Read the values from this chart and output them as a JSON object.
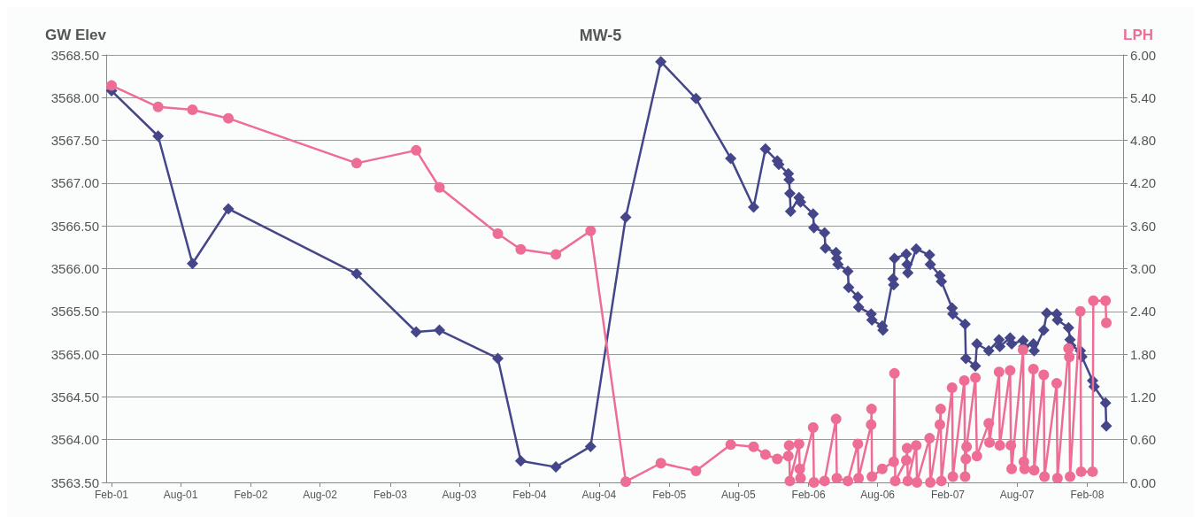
{
  "chart_data": {
    "type": "line",
    "title": "MW-5",
    "ylabel": "GW Elev",
    "y2label": "LPH",
    "xlim": [
      "2001-01-18",
      "2008-05-05"
    ],
    "xticks": [
      {
        "value": "2001-02-01",
        "label": "Feb-01"
      },
      {
        "value": "2001-08-01",
        "label": "Aug-01"
      },
      {
        "value": "2002-02-01",
        "label": "Feb-02"
      },
      {
        "value": "2002-08-01",
        "label": "Aug-02"
      },
      {
        "value": "2003-02-01",
        "label": "Feb-03"
      },
      {
        "value": "2003-08-01",
        "label": "Aug-03"
      },
      {
        "value": "2004-02-01",
        "label": "Feb-04"
      },
      {
        "value": "2004-08-01",
        "label": "Aug-04"
      },
      {
        "value": "2005-02-01",
        "label": "Feb-05"
      },
      {
        "value": "2005-08-01",
        "label": "Aug-05"
      },
      {
        "value": "2006-02-01",
        "label": "Feb-06"
      },
      {
        "value": "2006-08-01",
        "label": "Aug-06"
      },
      {
        "value": "2007-02-01",
        "label": "Feb-07"
      },
      {
        "value": "2007-08-01",
        "label": "Aug-07"
      },
      {
        "value": "2008-02-01",
        "label": "Feb-08"
      }
    ],
    "ylim": [
      3563.5,
      3568.5
    ],
    "yticks": [
      {
        "value": 3563.5,
        "label": "3563.50"
      },
      {
        "value": 3564,
        "label": "3564.00"
      },
      {
        "value": 3564.5,
        "label": "3564.50"
      },
      {
        "value": 3565,
        "label": "3565.00"
      },
      {
        "value": 3565.5,
        "label": "3565.50"
      },
      {
        "value": 3566,
        "label": "3566.00"
      },
      {
        "value": 3566.5,
        "label": "3566.50"
      },
      {
        "value": 3567,
        "label": "3567.00"
      },
      {
        "value": 3567.5,
        "label": "3567.50"
      },
      {
        "value": 3568,
        "label": "3568.00"
      },
      {
        "value": 3568.5,
        "label": "3568.50"
      }
    ],
    "y2lim": [
      0,
      6
    ],
    "y2ticks": [
      {
        "value": 0,
        "label": "0.00"
      },
      {
        "value": 0.6,
        "label": "0.60"
      },
      {
        "value": 1.2,
        "label": "1.20"
      },
      {
        "value": 1.8,
        "label": "1.80"
      },
      {
        "value": 2.4,
        "label": "2.40"
      },
      {
        "value": 3,
        "label": "3.00"
      },
      {
        "value": 3.6,
        "label": "3.60"
      },
      {
        "value": 4.2,
        "label": "4.20"
      },
      {
        "value": 4.8,
        "label": "4.80"
      },
      {
        "value": 5.4,
        "label": "5.40"
      },
      {
        "value": 6,
        "label": "6.00"
      }
    ],
    "grid": "y",
    "line_style": "solid",
    "series": [
      {
        "color": "#45458a",
        "marker": "diamond",
        "x": [
          "2001-02-01",
          "2001-06-03",
          "2001-09-01",
          "2001-12-04",
          "2002-11-05",
          "2003-04-10",
          "2003-06-10",
          "2003-11-10",
          "2004-01-09",
          "2004-04-10",
          "2004-07-10",
          "2004-10-10",
          "2005-01-10",
          "2005-04-12",
          "2005-07-12",
          "2005-09-10",
          "2005-10-11",
          "2005-11-11",
          "2005-11-15",
          "2005-12-10",
          "2005-12-12",
          "2005-12-14",
          "2005-12-16",
          "2006-01-07",
          "2006-01-11",
          "2006-02-13",
          "2006-02-15",
          "2006-03-15",
          "2006-03-17",
          "2006-04-14",
          "2006-04-16",
          "2006-04-19",
          "2006-05-15",
          "2006-05-17",
          "2006-06-10",
          "2006-06-12",
          "2006-07-15",
          "2006-07-17",
          "2006-08-13",
          "2006-08-15",
          "2006-09-10",
          "2006-09-12",
          "2006-09-14",
          "2006-10-15",
          "2006-10-17",
          "2006-10-19",
          "2006-11-10",
          "2006-12-15",
          "2006-12-17",
          "2007-01-11",
          "2007-01-15",
          "2007-02-12",
          "2007-02-14",
          "2007-03-18",
          "2007-03-20",
          "2007-04-14",
          "2007-04-18",
          "2007-05-19",
          "2007-06-15",
          "2007-06-17",
          "2007-07-14",
          "2007-07-18",
          "2007-08-17",
          "2007-08-19",
          "2007-09-13",
          "2007-09-15",
          "2007-10-10",
          "2007-10-18",
          "2007-11-13",
          "2007-11-15",
          "2007-12-14",
          "2007-12-18",
          "2007-12-20",
          "2008-01-14",
          "2008-01-18",
          "2008-02-15",
          "2008-02-19",
          "2008-03-20",
          "2008-03-22"
        ],
        "values": [
          3568.08,
          3567.55,
          3566.06,
          3566.7,
          3565.94,
          3565.26,
          3565.28,
          3564.95,
          3563.75,
          3563.68,
          3563.92,
          3566.6,
          3568.42,
          3567.99,
          3567.29,
          3566.72,
          3567.4,
          3567.26,
          3567.22,
          3567.11,
          3567.04,
          3566.88,
          3566.67,
          3566.83,
          3566.78,
          3566.64,
          3566.48,
          3566.42,
          3566.24,
          3566.19,
          3566.12,
          3566.05,
          3565.97,
          3565.78,
          3565.67,
          3565.55,
          3565.47,
          3565.4,
          3565.33,
          3565.28,
          3565.88,
          3565.81,
          3566.12,
          3566.17,
          3566.05,
          3565.95,
          3566.23,
          3566.16,
          3566.05,
          3565.92,
          3565.85,
          3565.54,
          3565.47,
          3565.35,
          3564.95,
          3564.86,
          3565.12,
          3565.04,
          3565.17,
          3565.09,
          3565.19,
          3565.12,
          3565.16,
          3565.09,
          3565.12,
          3565.04,
          3565.28,
          3565.48,
          3565.47,
          3565.4,
          3565.31,
          3565.17,
          3565.1,
          3565.04,
          3564.97,
          3564.69,
          3564.62,
          3564.43,
          3564.16
        ]
      },
      {
        "color": "#ee6d94",
        "marker": "circle",
        "axis": "y2",
        "x": [
          "2001-02-01",
          "2001-06-03",
          "2001-09-01",
          "2001-12-04",
          "2002-11-05",
          "2003-04-10",
          "2003-06-10",
          "2003-11-10",
          "2004-01-09",
          "2004-04-10",
          "2004-07-10",
          "2004-10-10",
          "2005-01-10",
          "2005-04-12",
          "2005-07-12",
          "2005-09-10",
          "2005-10-11",
          "2005-11-11",
          "2005-12-10",
          "2005-12-12",
          "2005-12-14",
          "2006-01-07",
          "2006-01-09",
          "2006-01-11",
          "2006-02-13",
          "2006-02-15",
          "2006-03-15",
          "2006-04-14",
          "2006-04-16",
          "2006-05-15",
          "2006-06-10",
          "2006-06-12",
          "2006-07-15",
          "2006-07-16",
          "2006-07-17",
          "2006-08-13",
          "2006-09-12",
          "2006-09-14",
          "2006-09-16",
          "2006-10-15",
          "2006-10-17",
          "2006-10-19",
          "2006-11-10",
          "2006-11-12",
          "2006-12-15",
          "2006-12-17",
          "2007-01-11",
          "2007-01-13",
          "2007-01-15",
          "2007-02-12",
          "2007-02-14",
          "2007-03-16",
          "2007-03-18",
          "2007-03-20",
          "2007-03-22",
          "2007-04-14",
          "2007-04-18",
          "2007-05-19",
          "2007-05-21",
          "2007-06-15",
          "2007-06-17",
          "2007-07-14",
          "2007-07-16",
          "2007-07-18",
          "2007-08-17",
          "2007-08-19",
          "2007-08-21",
          "2007-09-13",
          "2007-09-15",
          "2007-10-10",
          "2007-10-12",
          "2007-11-13",
          "2007-11-15",
          "2007-12-14",
          "2007-12-16",
          "2007-12-18",
          "2008-01-14",
          "2008-01-16",
          "2008-02-15",
          "2008-02-17",
          "2008-03-20",
          "2008-03-22"
        ],
        "values": [
          5.57,
          5.27,
          5.23,
          5.11,
          4.48,
          4.66,
          4.14,
          3.49,
          3.27,
          3.2,
          3.53,
          0.01,
          0.27,
          0.16,
          0.53,
          0.5,
          0.39,
          0.33,
          0.37,
          0.52,
          0.02,
          0.54,
          0.19,
          0.06,
          0.77,
          0,
          0.02,
          0.89,
          0.06,
          0.02,
          0.54,
          0.06,
          0.81,
          1.03,
          0.08,
          0.19,
          0.29,
          1.53,
          0.02,
          0.31,
          0.48,
          0.02,
          0.52,
          0,
          0.62,
          0,
          0.81,
          1.03,
          0.02,
          1.33,
          0.08,
          1.43,
          0.08,
          0.33,
          0.5,
          1.47,
          0.37,
          0.83,
          0.56,
          1.55,
          0.52,
          1.57,
          0.52,
          0.19,
          1.86,
          0.29,
          0.19,
          1.59,
          0.17,
          1.51,
          0.08,
          1.39,
          0.06,
          1.88,
          1.76,
          0.08,
          2.4,
          0.15,
          0.15,
          2.55,
          2.55,
          2.24
        ]
      }
    ]
  }
}
